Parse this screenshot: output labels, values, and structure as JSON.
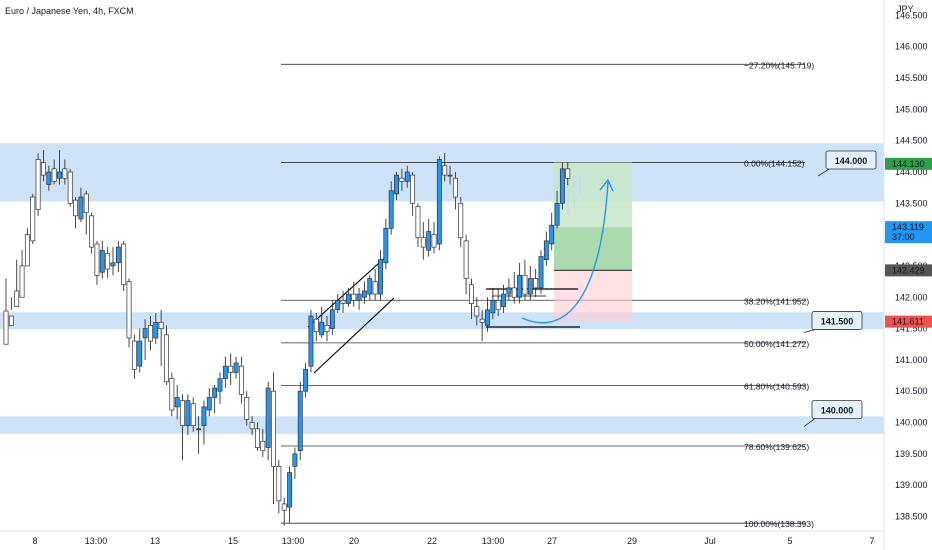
{
  "header": {
    "title": "Euro / Japanese Yen, 4h, FXCM",
    "currency": "JPY"
  },
  "chart_data": {
    "type": "candlestick",
    "ylim": [
      138.3,
      146.65
    ],
    "y_ticks": [
      "146.500",
      "146.000",
      "145.500",
      "145.000",
      "144.500",
      "144.000",
      "143.500",
      "143.000",
      "142.500",
      "142.000",
      "141.500",
      "141.000",
      "140.500",
      "140.000",
      "139.500",
      "139.000",
      "138.500"
    ],
    "x_ticks": [
      "8",
      "13:00",
      "13",
      "15",
      "13:00",
      "20",
      "22",
      "13:00",
      "27",
      "29",
      "Jul",
      "5",
      "7"
    ],
    "zones": [
      {
        "price_low": 143.53,
        "price_high": 144.46,
        "color": "#cfe3f8"
      },
      {
        "price_low": 141.49,
        "price_high": 141.76,
        "color": "#cfe3f8"
      },
      {
        "price_low": 139.82,
        "price_high": 140.1,
        "color": "#cfe3f8"
      }
    ],
    "fib_levels": [
      {
        "label": "−27.20%(145.719)",
        "price": 145.719
      },
      {
        "label": "0.00%(144.152)",
        "price": 144.152
      },
      {
        "label": "38.20%(141.952)",
        "price": 141.952
      },
      {
        "label": "50.00%(141.272)",
        "price": 141.272
      },
      {
        "label": "61.80%(140.593)",
        "price": 140.593
      },
      {
        "label": "78.60%(139.625)",
        "price": 139.625
      },
      {
        "label": "100.00%(138.393)",
        "price": 138.393
      }
    ],
    "callouts": [
      {
        "label": "144.000",
        "price": 144.0
      },
      {
        "label": "141.500",
        "price": 141.5
      },
      {
        "label": "140.000",
        "price": 140.0
      }
    ],
    "price_badges": [
      {
        "label": "144.130",
        "price": 144.13,
        "color": "#2ea04a"
      },
      {
        "label": "143.119",
        "sublabel": "37:00",
        "price": 143.119,
        "color": "#2196f3"
      },
      {
        "label": "142.429",
        "price": 142.429,
        "color": "#555555"
      },
      {
        "label": "141.611",
        "price": 141.611,
        "color": "#ef5350"
      }
    ],
    "position": {
      "entry": 142.429,
      "target": 144.152,
      "stop": 141.611
    },
    "candles": [
      [
        141.78,
        141.25,
        141.6,
        142.3
      ],
      [
        141.7,
        141.55,
        142.0,
        141.8
      ],
      [
        142.1,
        141.85,
        142.6,
        142.05
      ],
      [
        142.5,
        142.0,
        142.75,
        142.3
      ],
      [
        143.0,
        142.5,
        143.1,
        142.65
      ],
      [
        143.6,
        142.9,
        143.65,
        142.85
      ],
      [
        144.2,
        143.4,
        144.3,
        143.3
      ],
      [
        144.15,
        143.95,
        144.35,
        143.85
      ],
      [
        143.8,
        144.0,
        144.1,
        143.7
      ],
      [
        144.05,
        143.85,
        144.2,
        143.8
      ],
      [
        143.9,
        144.0,
        144.35,
        143.8
      ],
      [
        144.05,
        143.9,
        144.2,
        143.8
      ],
      [
        144.0,
        143.5,
        144.05,
        143.45
      ],
      [
        143.55,
        143.3,
        143.6,
        143.1
      ],
      [
        143.25,
        143.6,
        143.75,
        143.2
      ],
      [
        143.65,
        143.35,
        143.7,
        143.0
      ],
      [
        143.3,
        142.8,
        143.35,
        142.7
      ],
      [
        142.85,
        142.35,
        142.9,
        142.2
      ],
      [
        142.4,
        142.75,
        142.9,
        142.3
      ],
      [
        142.7,
        142.45,
        142.8,
        142.3
      ],
      [
        142.5,
        142.55,
        142.8,
        142.35
      ],
      [
        142.55,
        142.8,
        142.9,
        142.4
      ],
      [
        142.85,
        142.2,
        142.9,
        142.1
      ],
      [
        142.25,
        141.35,
        142.3,
        141.2
      ],
      [
        141.3,
        140.85,
        141.4,
        140.7
      ],
      [
        140.9,
        141.3,
        141.5,
        140.8
      ],
      [
        141.35,
        141.5,
        141.65,
        141.0
      ],
      [
        141.55,
        141.3,
        141.7,
        141.15
      ],
      [
        141.35,
        141.6,
        141.75,
        141.25
      ],
      [
        141.6,
        141.5,
        141.8,
        140.9
      ],
      [
        141.4,
        140.65,
        141.55,
        140.6
      ],
      [
        140.7,
        140.2,
        140.8,
        140.1
      ],
      [
        140.25,
        140.4,
        140.6,
        140.05
      ],
      [
        140.35,
        139.95,
        140.45,
        139.4
      ],
      [
        139.95,
        140.35,
        140.45,
        139.8
      ],
      [
        140.3,
        139.95,
        140.4,
        139.85
      ],
      [
        139.9,
        139.9,
        140.1,
        139.5
      ],
      [
        139.95,
        140.25,
        140.35,
        139.65
      ],
      [
        140.2,
        140.4,
        140.55,
        140.1
      ],
      [
        140.4,
        140.55,
        140.6,
        140.15
      ],
      [
        140.5,
        140.7,
        140.8,
        140.3
      ],
      [
        140.7,
        140.9,
        141.05,
        140.55
      ],
      [
        140.9,
        140.8,
        141.1,
        140.6
      ],
      [
        140.8,
        140.95,
        141.05,
        140.7
      ],
      [
        140.9,
        140.45,
        141.05,
        140.3
      ],
      [
        140.4,
        140.05,
        140.5,
        139.95
      ],
      [
        140.0,
        139.9,
        140.1,
        139.8
      ],
      [
        139.9,
        139.6,
        140.0,
        139.55
      ],
      [
        139.7,
        139.55,
        139.9,
        139.45
      ],
      [
        139.6,
        140.55,
        140.65,
        139.4
      ],
      [
        140.5,
        139.3,
        140.8,
        138.7
      ],
      [
        139.3,
        138.75,
        139.4,
        138.55
      ],
      [
        138.7,
        138.6,
        138.8,
        138.35
      ],
      [
        138.65,
        139.2,
        139.3,
        138.4
      ],
      [
        139.3,
        139.5,
        139.6,
        139.1
      ],
      [
        139.55,
        140.5,
        140.65,
        139.4
      ],
      [
        140.5,
        140.85,
        140.95,
        140.4
      ],
      [
        140.9,
        141.7,
        141.8,
        140.8
      ],
      [
        141.65,
        141.45,
        141.75,
        141.3
      ],
      [
        141.4,
        141.6,
        141.85,
        141.35
      ],
      [
        141.55,
        141.45,
        141.7,
        141.3
      ],
      [
        141.5,
        141.8,
        141.95,
        141.4
      ],
      [
        141.8,
        141.95,
        142.05,
        141.75
      ],
      [
        141.95,
        141.9,
        142.1,
        141.75
      ],
      [
        141.9,
        142.05,
        142.15,
        141.85
      ],
      [
        142.05,
        141.95,
        142.25,
        141.85
      ],
      [
        141.95,
        142.05,
        142.15,
        141.8
      ],
      [
        142.0,
        142.1,
        142.25,
        141.9
      ],
      [
        142.05,
        142.3,
        142.35,
        141.95
      ],
      [
        142.25,
        142.05,
        142.45,
        141.95
      ],
      [
        142.05,
        142.6,
        142.75,
        141.95
      ],
      [
        142.55,
        143.1,
        143.25,
        142.45
      ],
      [
        143.1,
        143.7,
        143.85,
        143.0
      ],
      [
        143.65,
        143.95,
        144.0,
        143.55
      ],
      [
        143.9,
        143.85,
        144.05,
        143.7
      ],
      [
        143.85,
        144.0,
        144.1,
        143.75
      ],
      [
        143.95,
        143.5,
        144.0,
        143.3
      ],
      [
        143.45,
        142.95,
        143.5,
        142.8
      ],
      [
        142.95,
        142.8,
        143.2,
        142.6
      ],
      [
        142.75,
        143.05,
        143.25,
        142.65
      ],
      [
        143.0,
        142.8,
        143.2,
        142.7
      ],
      [
        142.85,
        144.2,
        144.25,
        142.75
      ],
      [
        144.1,
        143.95,
        144.3,
        143.85
      ],
      [
        143.95,
        143.95,
        144.1,
        143.8
      ],
      [
        143.9,
        143.6,
        144.0,
        143.4
      ],
      [
        143.5,
        142.95,
        143.6,
        142.8
      ],
      [
        142.9,
        142.3,
        143.0,
        142.05
      ],
      [
        142.2,
        141.9,
        142.3,
        141.65
      ],
      [
        141.85,
        141.7,
        142.0,
        141.55
      ],
      [
        141.65,
        141.6,
        141.8,
        141.3
      ],
      [
        141.55,
        141.8,
        142.0,
        141.45
      ],
      [
        141.75,
        141.95,
        142.15,
        141.65
      ],
      [
        141.95,
        141.8,
        142.15,
        141.7
      ],
      [
        141.85,
        142.05,
        142.2,
        141.75
      ],
      [
        142.05,
        142.15,
        142.3,
        141.95
      ],
      [
        142.15,
        142.0,
        142.4,
        141.9
      ],
      [
        142.0,
        142.35,
        142.55,
        141.9
      ],
      [
        142.35,
        142.05,
        142.6,
        141.95
      ],
      [
        142.05,
        142.3,
        142.5,
        141.95
      ],
      [
        142.3,
        142.15,
        142.45,
        142.0
      ],
      [
        142.15,
        142.65,
        142.75,
        142.05
      ],
      [
        142.6,
        142.9,
        143.05,
        142.5
      ],
      [
        142.85,
        143.15,
        143.35,
        142.75
      ],
      [
        143.15,
        143.5,
        143.7,
        143.1
      ],
      [
        143.5,
        144.05,
        144.15,
        143.4
      ],
      [
        144.05,
        143.9,
        144.15,
        143.75
      ]
    ]
  },
  "icons": {
    "arrow": "curved-arrow-icon"
  }
}
